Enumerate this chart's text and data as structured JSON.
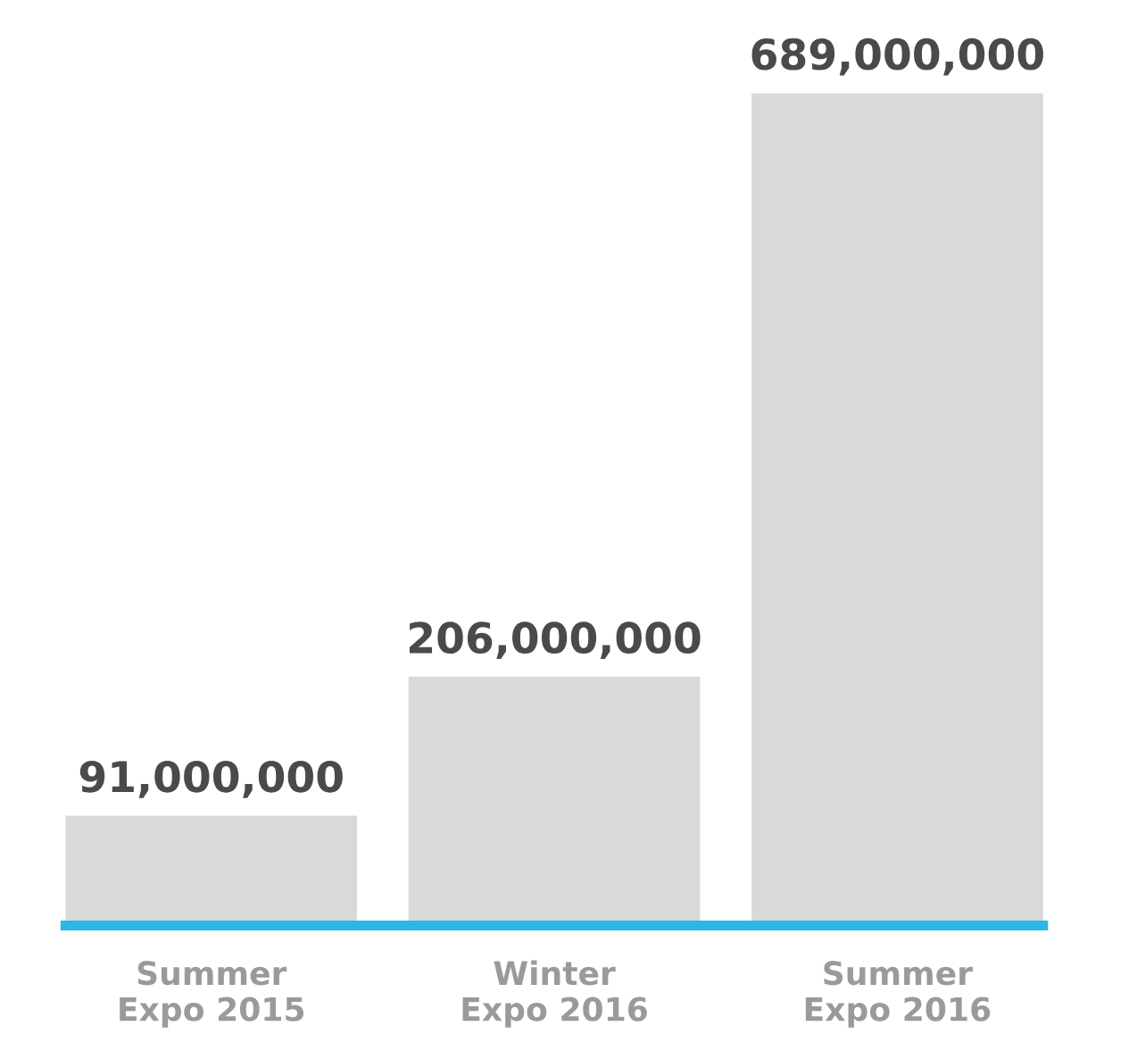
{
  "chart_data": {
    "type": "bar",
    "categories": [
      "Summer\nExpo 2015",
      "Winter\nExpo 2016",
      "Summer\nExpo 2016"
    ],
    "values": [
      91000000,
      206000000,
      689000000
    ],
    "value_labels": [
      "91,000,000",
      "206,000,000",
      "689,000,000"
    ],
    "color": "#d9d9d9",
    "tick_labels": "x",
    "grid": false,
    "legend": false
  }
}
